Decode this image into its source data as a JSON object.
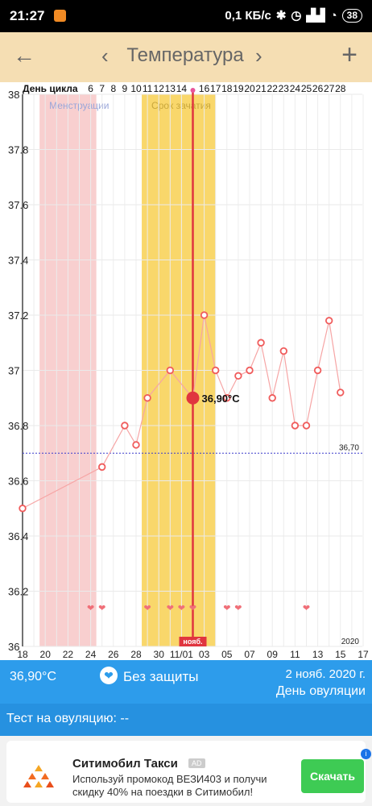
{
  "status_bar": {
    "time": "21:27",
    "network": "0,1 КБ/с",
    "battery": "38"
  },
  "app_bar": {
    "title": "Температура"
  },
  "chart_data": {
    "type": "line",
    "cycle_day_label": "День цикла",
    "cycle_day_ticks": [
      {
        "i": 6,
        "label": "6"
      },
      {
        "i": 7,
        "label": "7"
      },
      {
        "i": 8,
        "label": "8"
      },
      {
        "i": 9,
        "label": "9"
      },
      {
        "i": 10,
        "label": "10"
      },
      {
        "i": 11,
        "label": "11"
      },
      {
        "i": 12,
        "label": "12"
      },
      {
        "i": 13,
        "label": "13"
      },
      {
        "i": 14,
        "label": "14"
      },
      {
        "i": 16,
        "label": "16"
      },
      {
        "i": 17,
        "label": "17"
      },
      {
        "i": 18,
        "label": "18"
      },
      {
        "i": 19,
        "label": "19"
      },
      {
        "i": 20,
        "label": "20"
      },
      {
        "i": 21,
        "label": "21"
      },
      {
        "i": 22,
        "label": "22"
      },
      {
        "i": 23,
        "label": "23"
      },
      {
        "i": 24,
        "label": "24"
      },
      {
        "i": 25,
        "label": "25"
      },
      {
        "i": 26,
        "label": "26"
      },
      {
        "i": 27,
        "label": "27"
      },
      {
        "i": 28,
        "label": "28"
      }
    ],
    "date_ticks": [
      {
        "i": 0,
        "label": "18"
      },
      {
        "i": 2,
        "label": "20"
      },
      {
        "i": 4,
        "label": "22"
      },
      {
        "i": 6,
        "label": "24"
      },
      {
        "i": 8,
        "label": "26"
      },
      {
        "i": 10,
        "label": "28"
      },
      {
        "i": 12,
        "label": "30"
      },
      {
        "i": 14,
        "label": "11/01"
      },
      {
        "i": 16,
        "label": "03"
      },
      {
        "i": 18,
        "label": "05"
      },
      {
        "i": 20,
        "label": "07"
      },
      {
        "i": 22,
        "label": "09"
      },
      {
        "i": 24,
        "label": "11"
      },
      {
        "i": 26,
        "label": "13"
      },
      {
        "i": 28,
        "label": "15"
      },
      {
        "i": 30,
        "label": "17"
      }
    ],
    "year_label": "2020",
    "selected_date_label": "нояб.",
    "ylim": [
      36,
      38
    ],
    "y_ticks": [
      36,
      36.2,
      36.4,
      36.6,
      36.8,
      37,
      37.2,
      37.4,
      37.6,
      37.8,
      38
    ],
    "y_tick_labels": [
      "36",
      "36.2",
      "36.4",
      "36.6",
      "36.8",
      "37",
      "37.2",
      "37.4",
      "37.6",
      "37.8",
      "38"
    ],
    "x_range": [
      0,
      30
    ],
    "series": [
      {
        "points": [
          {
            "x": 0,
            "y": 36.5
          },
          {
            "x": 7,
            "y": 36.65
          },
          {
            "x": 9,
            "y": 36.8
          },
          {
            "x": 10,
            "y": 36.73
          },
          {
            "x": 11,
            "y": 36.9
          },
          {
            "x": 13,
            "y": 37.0
          },
          {
            "x": 15,
            "y": 36.9
          },
          {
            "x": 16,
            "y": 37.2
          },
          {
            "x": 17,
            "y": 37.0
          },
          {
            "x": 18,
            "y": 36.9
          },
          {
            "x": 19,
            "y": 36.98
          },
          {
            "x": 20,
            "y": 37.0
          },
          {
            "x": 21,
            "y": 37.1
          },
          {
            "x": 22,
            "y": 36.9
          },
          {
            "x": 23,
            "y": 37.07
          },
          {
            "x": 24,
            "y": 36.8
          },
          {
            "x": 25,
            "y": 36.8
          },
          {
            "x": 26,
            "y": 37.0
          },
          {
            "x": 27,
            "y": 37.18
          },
          {
            "x": 28,
            "y": 36.92
          }
        ]
      }
    ],
    "selected_point": {
      "x": 15,
      "y": 36.9,
      "label": "36,90°C"
    },
    "coverline": {
      "y": 36.7,
      "label": "36,70"
    },
    "bands": [
      {
        "label": "Менструации",
        "x_start": 1.5,
        "x_end": 6.5,
        "color": "#f8cfcf"
      },
      {
        "label": "Срок зачатия",
        "x_start": 10.5,
        "x_end": 17.0,
        "color": "#f9d76b"
      }
    ],
    "intercourse_days": [
      6,
      7,
      11,
      13,
      14,
      15,
      18,
      19,
      25
    ],
    "colors": {
      "line": "#f6a5a5",
      "point": "#f05c5c",
      "selected": "#e0353f",
      "coverline": "#3b3bcc"
    }
  },
  "info_bar": {
    "temperature": "36,90°C",
    "protection": "Без защиты",
    "date": "2 нояб. 2020 г.",
    "ovulation": "День овуляции"
  },
  "test_bar": {
    "text": "Тест на овуляцию: --"
  },
  "ad": {
    "name": "Ситимобил Такси",
    "badge": "AD",
    "text": "Используй промокод ВЕЗИ403 и получи скидку 40% на поездки в Ситимобил!",
    "button": "Скачать"
  }
}
